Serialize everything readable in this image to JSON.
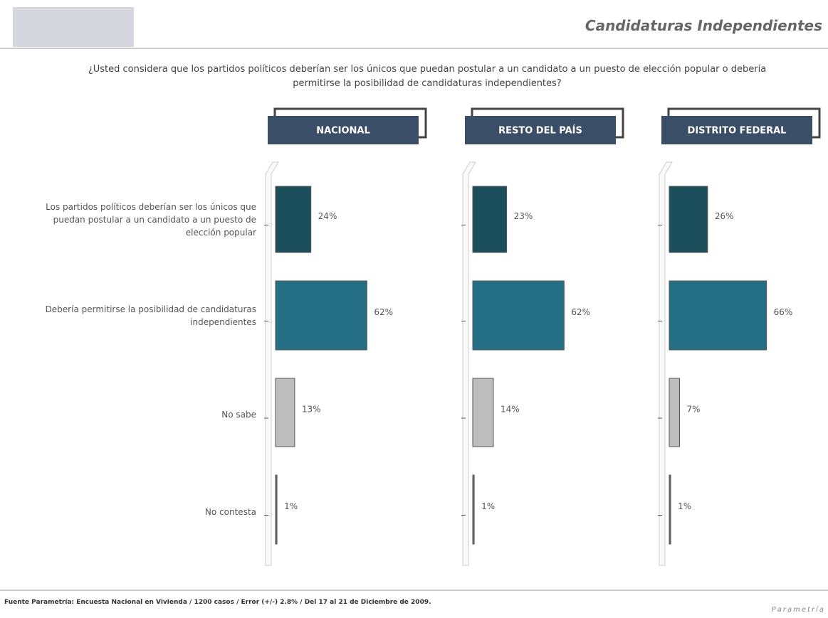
{
  "header": {
    "title": "Candidaturas Independientes"
  },
  "question": "¿Usted considera que los partidos políticos deberían ser los únicos que puedan postular a un candidato a un puesto de elección popular o debería permitirse la posibilidad de candidaturas independientes?",
  "chart_data": {
    "type": "bar",
    "orientation": "horizontal",
    "categories": [
      "Los partidos políticos deberían ser los únicos que puedan postular a un candidato a un puesto de elección popular",
      "Debería permitirse la posibilidad de candidaturas independientes",
      "No sabe",
      "No contesta"
    ],
    "colors": [
      "#1c4f5c",
      "#256f86",
      "#bdbdbd",
      "#6e6e6e"
    ],
    "series": [
      {
        "name": "NACIONAL",
        "values": [
          24,
          62,
          13,
          1
        ],
        "value_labels": [
          "24%",
          "62%",
          "13%",
          "1%"
        ]
      },
      {
        "name": "RESTO DEL PAÍS",
        "values": [
          23,
          62,
          14,
          1
        ],
        "value_labels": [
          "23%",
          "62%",
          "14%",
          "1%"
        ]
      },
      {
        "name": "DISTRITO FEDERAL",
        "values": [
          26,
          66,
          7,
          1
        ],
        "value_labels": [
          "26%",
          "66%",
          "7%",
          "1%"
        ]
      }
    ]
  },
  "source": "Fuente Parametría: Encuesta Nacional en Vivienda / 1200 casos / Error (+/-) 2.8% / Del 17 al 21 de Diciembre de 2009.",
  "logo": "Parametría"
}
